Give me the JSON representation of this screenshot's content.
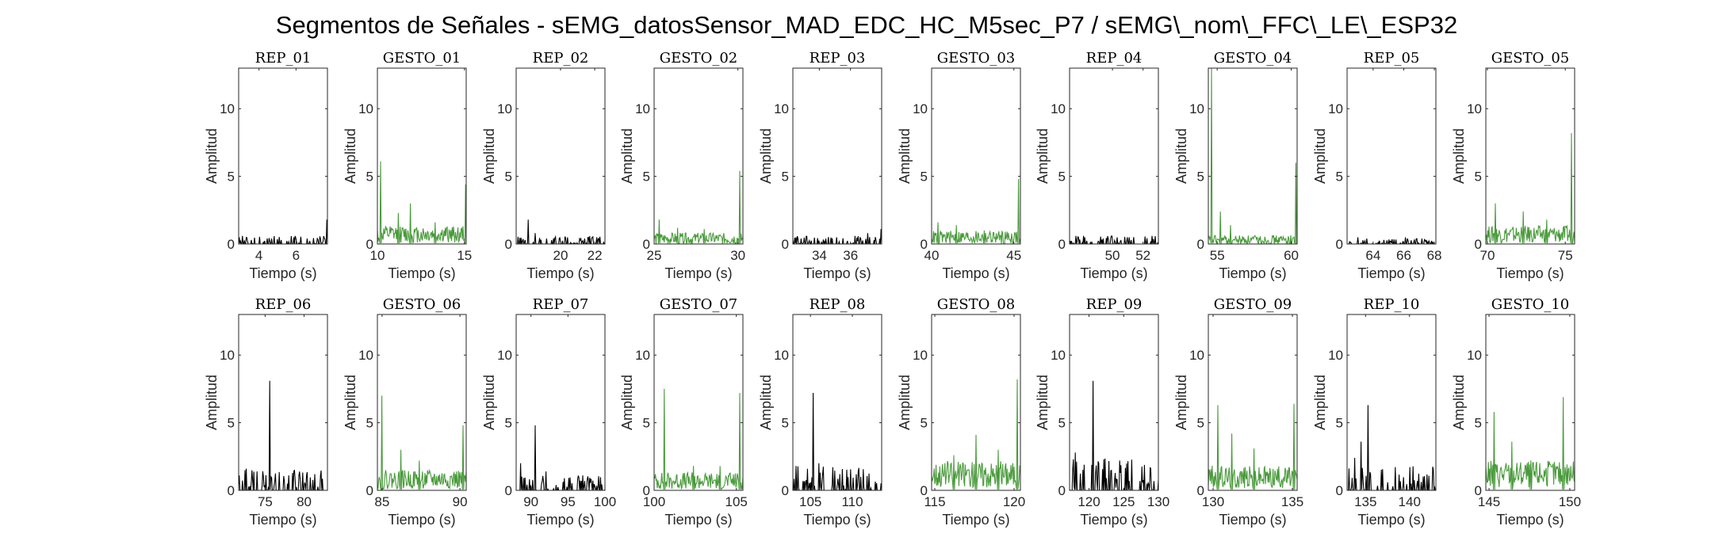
{
  "figure": {
    "title": "Segmentos de Señales - sEMG_datosSensor_MAD_EDC_HC_M5sec_P7 / sEMG\\_nom\\_FFC\\_LE\\_ESP32"
  },
  "chart_data": [
    {
      "type": "line",
      "title": "REP_01",
      "xlabel": "Tiempo (s)",
      "ylabel": "Amplitud",
      "xlim": [
        2.9,
        7.7
      ],
      "ylim": [
        0,
        13
      ],
      "xticks": [
        4,
        6
      ],
      "yticks": [
        0,
        5,
        10
      ],
      "color": "#000000",
      "kind": "rep",
      "seed": 11,
      "base": 0.3,
      "spikes": [
        [
          2.95,
          0.5
        ],
        [
          3.1,
          0.6
        ],
        [
          3.6,
          0.3
        ],
        [
          4.7,
          0.4
        ],
        [
          5.2,
          0.3
        ],
        [
          5.9,
          0.5
        ],
        [
          6.6,
          0.4
        ],
        [
          7.68,
          1.8
        ]
      ]
    },
    {
      "type": "line",
      "title": "GESTO_01",
      "xlabel": "Tiempo (s)",
      "ylabel": "Amplitud",
      "xlim": [
        10,
        15.1
      ],
      "ylim": [
        0,
        13
      ],
      "xticks": [
        10,
        15
      ],
      "yticks": [
        0,
        5,
        10
      ],
      "color": "#4a9a3c",
      "kind": "gesto",
      "seed": 12,
      "base": 0.9,
      "spikes": [
        [
          10.2,
          6.1
        ],
        [
          11.9,
          3.0
        ],
        [
          11.2,
          2.3
        ],
        [
          13.3,
          1.6
        ],
        [
          15.05,
          4.4
        ]
      ]
    },
    {
      "type": "line",
      "title": "REP_02",
      "xlabel": "Tiempo (s)",
      "ylabel": "Amplitud",
      "xlim": [
        17.4,
        22.6
      ],
      "ylim": [
        0,
        13
      ],
      "xticks": [
        20,
        22
      ],
      "yticks": [
        0,
        5,
        10
      ],
      "color": "#000000",
      "kind": "rep",
      "seed": 13,
      "base": 0.3,
      "spikes": [
        [
          18.1,
          1.8
        ],
        [
          18.5,
          0.8
        ],
        [
          19.2,
          0.4
        ],
        [
          20.4,
          0.5
        ],
        [
          21.4,
          0.4
        ],
        [
          22.1,
          0.5
        ]
      ]
    },
    {
      "type": "line",
      "title": "GESTO_02",
      "xlabel": "Tiempo (s)",
      "ylabel": "Amplitud",
      "xlim": [
        25,
        30.3
      ],
      "ylim": [
        0,
        13
      ],
      "xticks": [
        25,
        30
      ],
      "yticks": [
        0,
        5,
        10
      ],
      "color": "#4a9a3c",
      "kind": "gesto",
      "seed": 14,
      "base": 0.6,
      "spikes": [
        [
          25.3,
          1.8
        ],
        [
          26.4,
          1.2
        ],
        [
          28.0,
          1.1
        ],
        [
          30.1,
          5.4
        ]
      ]
    },
    {
      "type": "line",
      "title": "REP_03",
      "xlabel": "Tiempo (s)",
      "ylabel": "Amplitud",
      "xlim": [
        32.3,
        38
      ],
      "ylim": [
        0,
        13
      ],
      "xticks": [
        34,
        36
      ],
      "yticks": [
        0,
        5,
        10
      ],
      "color": "#000000",
      "kind": "rep",
      "seed": 15,
      "base": 0.3,
      "spikes": [
        [
          32.5,
          0.5
        ],
        [
          34.4,
          0.4
        ],
        [
          35.1,
          0.5
        ],
        [
          36.3,
          0.6
        ],
        [
          37.1,
          0.8
        ],
        [
          37.95,
          1.1
        ]
      ]
    },
    {
      "type": "line",
      "title": "GESTO_03",
      "xlabel": "Tiempo (s)",
      "ylabel": "Amplitud",
      "xlim": [
        40,
        45.4
      ],
      "ylim": [
        0,
        13
      ],
      "xticks": [
        40,
        45
      ],
      "yticks": [
        0,
        5,
        10
      ],
      "color": "#4a9a3c",
      "kind": "gesto",
      "seed": 16,
      "base": 0.7,
      "spikes": [
        [
          40.4,
          1.6
        ],
        [
          41.5,
          1.4
        ],
        [
          43.2,
          1.0
        ],
        [
          45.3,
          4.8
        ]
      ]
    },
    {
      "type": "line",
      "title": "REP_04",
      "xlabel": "Tiempo (s)",
      "ylabel": "Amplitud",
      "xlim": [
        47.2,
        53
      ],
      "ylim": [
        0,
        13
      ],
      "xticks": [
        50,
        52
      ],
      "yticks": [
        0,
        5,
        10
      ],
      "color": "#000000",
      "kind": "rep",
      "seed": 17,
      "base": 0.3,
      "spikes": [
        [
          47.6,
          0.6
        ],
        [
          48.2,
          0.5
        ],
        [
          49.4,
          0.4
        ],
        [
          50.3,
          0.5
        ],
        [
          51.1,
          0.5
        ],
        [
          52.6,
          0.6
        ]
      ]
    },
    {
      "type": "line",
      "title": "GESTO_04",
      "xlabel": "Tiempo (s)",
      "ylabel": "Amplitud",
      "xlim": [
        54.4,
        60.4
      ],
      "ylim": [
        0,
        13
      ],
      "xticks": [
        55,
        60
      ],
      "yticks": [
        0,
        5,
        10
      ],
      "color": "#4a9a3c",
      "kind": "gesto",
      "seed": 18,
      "base": 0.5,
      "spikes": [
        [
          54.6,
          13.0
        ],
        [
          55.2,
          2.4
        ],
        [
          55.9,
          1.4
        ],
        [
          60.3,
          6.0
        ]
      ]
    },
    {
      "type": "line",
      "title": "REP_05",
      "xlabel": "Tiempo (s)",
      "ylabel": "Amplitud",
      "xlim": [
        62.3,
        68.1
      ],
      "ylim": [
        0,
        13
      ],
      "xticks": [
        64,
        66,
        68
      ],
      "yticks": [
        0,
        5,
        10
      ],
      "color": "#000000",
      "kind": "rep",
      "seed": 19,
      "base": 0.2,
      "spikes": [
        [
          63.0,
          0.5
        ],
        [
          63.6,
          0.4
        ],
        [
          64.7,
          0.3
        ],
        [
          66.1,
          0.5
        ],
        [
          67.2,
          0.4
        ]
      ]
    },
    {
      "type": "line",
      "title": "GESTO_05",
      "xlabel": "Tiempo (s)",
      "ylabel": "Amplitud",
      "xlim": [
        69.9,
        75.6
      ],
      "ylim": [
        0,
        13
      ],
      "xticks": [
        70,
        75
      ],
      "yticks": [
        0,
        5,
        10
      ],
      "color": "#4a9a3c",
      "kind": "gesto",
      "seed": 20,
      "base": 0.9,
      "spikes": [
        [
          70.5,
          3.0
        ],
        [
          72.3,
          2.4
        ],
        [
          73.8,
          1.8
        ],
        [
          75.4,
          8.2
        ]
      ]
    },
    {
      "type": "line",
      "title": "REP_06",
      "xlabel": "Tiempo (s)",
      "ylabel": "Amplitud",
      "xlim": [
        71.6,
        83
      ],
      "ylim": [
        0,
        13
      ],
      "xticks": [
        75,
        80
      ],
      "yticks": [
        0,
        5,
        10
      ],
      "color": "#000000",
      "kind": "rep",
      "seed": 21,
      "base": 0.8,
      "spikes": [
        [
          72.4,
          1.5
        ],
        [
          75.6,
          8.1
        ],
        [
          74.0,
          1.4
        ],
        [
          78.0,
          1.1
        ],
        [
          81.4,
          1.2
        ]
      ]
    },
    {
      "type": "line",
      "title": "GESTO_06",
      "xlabel": "Tiempo (s)",
      "ylabel": "Amplitud",
      "xlim": [
        84.7,
        90.4
      ],
      "ylim": [
        0,
        13
      ],
      "xticks": [
        85,
        90
      ],
      "yticks": [
        0,
        5,
        10
      ],
      "color": "#4a9a3c",
      "kind": "gesto",
      "seed": 22,
      "base": 1.0,
      "spikes": [
        [
          85.0,
          7.0
        ],
        [
          86.2,
          3.0
        ],
        [
          87.4,
          2.2
        ],
        [
          90.2,
          4.8
        ]
      ]
    },
    {
      "type": "line",
      "title": "REP_07",
      "xlabel": "Tiempo (s)",
      "ylabel": "Amplitud",
      "xlim": [
        88,
        100
      ],
      "ylim": [
        0,
        13
      ],
      "xticks": [
        90,
        95,
        100
      ],
      "yticks": [
        0,
        5,
        10
      ],
      "color": "#000000",
      "kind": "rep",
      "seed": 23,
      "base": 0.6,
      "spikes": [
        [
          88.6,
          2.0
        ],
        [
          90.6,
          4.8
        ],
        [
          92.0,
          1.4
        ],
        [
          94.5,
          0.9
        ],
        [
          96.8,
          0.7
        ]
      ]
    },
    {
      "type": "line",
      "title": "GESTO_07",
      "xlabel": "Tiempo (s)",
      "ylabel": "Amplitud",
      "xlim": [
        100,
        105.4
      ],
      "ylim": [
        0,
        13
      ],
      "xticks": [
        100,
        105
      ],
      "yticks": [
        0,
        5,
        10
      ],
      "color": "#4a9a3c",
      "kind": "gesto",
      "seed": 24,
      "base": 0.9,
      "spikes": [
        [
          100.6,
          7.5
        ],
        [
          102.4,
          1.8
        ],
        [
          104.0,
          1.8
        ],
        [
          105.2,
          7.2
        ]
      ]
    },
    {
      "type": "line",
      "title": "REP_08",
      "xlabel": "Tiempo (s)",
      "ylabel": "Amplitud",
      "xlim": [
        102.9,
        113.5
      ],
      "ylim": [
        0,
        13
      ],
      "xticks": [
        105,
        110
      ],
      "yticks": [
        0,
        5,
        10
      ],
      "color": "#000000",
      "kind": "rep",
      "seed": 25,
      "base": 0.9,
      "spikes": [
        [
          103.3,
          1.8
        ],
        [
          105.3,
          7.2
        ],
        [
          106.0,
          2.0
        ],
        [
          108.5,
          1.2
        ],
        [
          111.0,
          1.0
        ]
      ]
    },
    {
      "type": "line",
      "title": "GESTO_08",
      "xlabel": "Tiempo (s)",
      "ylabel": "Amplitud",
      "xlim": [
        114.8,
        120.4
      ],
      "ylim": [
        0,
        13
      ],
      "xticks": [
        115,
        120
      ],
      "yticks": [
        0,
        5,
        10
      ],
      "color": "#4a9a3c",
      "kind": "gesto",
      "seed": 26,
      "base": 1.4,
      "spikes": [
        [
          116.2,
          2.6
        ],
        [
          117.6,
          4.1
        ],
        [
          119.0,
          3.0
        ],
        [
          120.2,
          8.2
        ]
      ]
    },
    {
      "type": "line",
      "title": "REP_09",
      "xlabel": "Tiempo (s)",
      "ylabel": "Amplitud",
      "xlim": [
        117.2,
        130
      ],
      "ylim": [
        0,
        13
      ],
      "xticks": [
        120,
        125,
        130
      ],
      "yticks": [
        0,
        5,
        10
      ],
      "color": "#000000",
      "kind": "rep",
      "seed": 27,
      "base": 1.2,
      "spikes": [
        [
          118.0,
          2.8
        ],
        [
          119.3,
          1.9
        ],
        [
          120.6,
          8.1
        ],
        [
          122.5,
          0.9
        ],
        [
          125.8,
          0.7
        ]
      ]
    },
    {
      "type": "line",
      "title": "GESTO_09",
      "xlabel": "Tiempo (s)",
      "ylabel": "Amplitud",
      "xlim": [
        129.7,
        135.3
      ],
      "ylim": [
        0,
        13
      ],
      "xticks": [
        130,
        135
      ],
      "yticks": [
        0,
        5,
        10
      ],
      "color": "#4a9a3c",
      "kind": "gesto",
      "seed": 28,
      "base": 1.2,
      "spikes": [
        [
          130.3,
          6.3
        ],
        [
          131.2,
          4.2
        ],
        [
          132.6,
          3.1
        ],
        [
          135.1,
          6.4
        ]
      ]
    },
    {
      "type": "line",
      "title": "REP_10",
      "xlabel": "Tiempo (s)",
      "ylabel": "Amplitud",
      "xlim": [
        132.9,
        143
      ],
      "ylim": [
        0,
        13
      ],
      "xticks": [
        135,
        140
      ],
      "yticks": [
        0,
        5,
        10
      ],
      "color": "#000000",
      "kind": "rep",
      "seed": 29,
      "base": 0.9,
      "spikes": [
        [
          133.8,
          2.4
        ],
        [
          134.5,
          3.6
        ],
        [
          135.3,
          6.3
        ],
        [
          137.5,
          0.6
        ],
        [
          140.2,
          0.5
        ]
      ]
    },
    {
      "type": "line",
      "title": "GESTO_10",
      "xlabel": "Tiempo (s)",
      "ylabel": "Amplitud",
      "xlim": [
        144.8,
        150.3
      ],
      "ylim": [
        0,
        13
      ],
      "xticks": [
        145,
        150
      ],
      "yticks": [
        0,
        5,
        10
      ],
      "color": "#4a9a3c",
      "kind": "gesto",
      "seed": 30,
      "base": 1.4,
      "spikes": [
        [
          145.3,
          5.8
        ],
        [
          146.4,
          3.6
        ],
        [
          147.6,
          2.2
        ],
        [
          149.6,
          6.9
        ]
      ]
    }
  ]
}
